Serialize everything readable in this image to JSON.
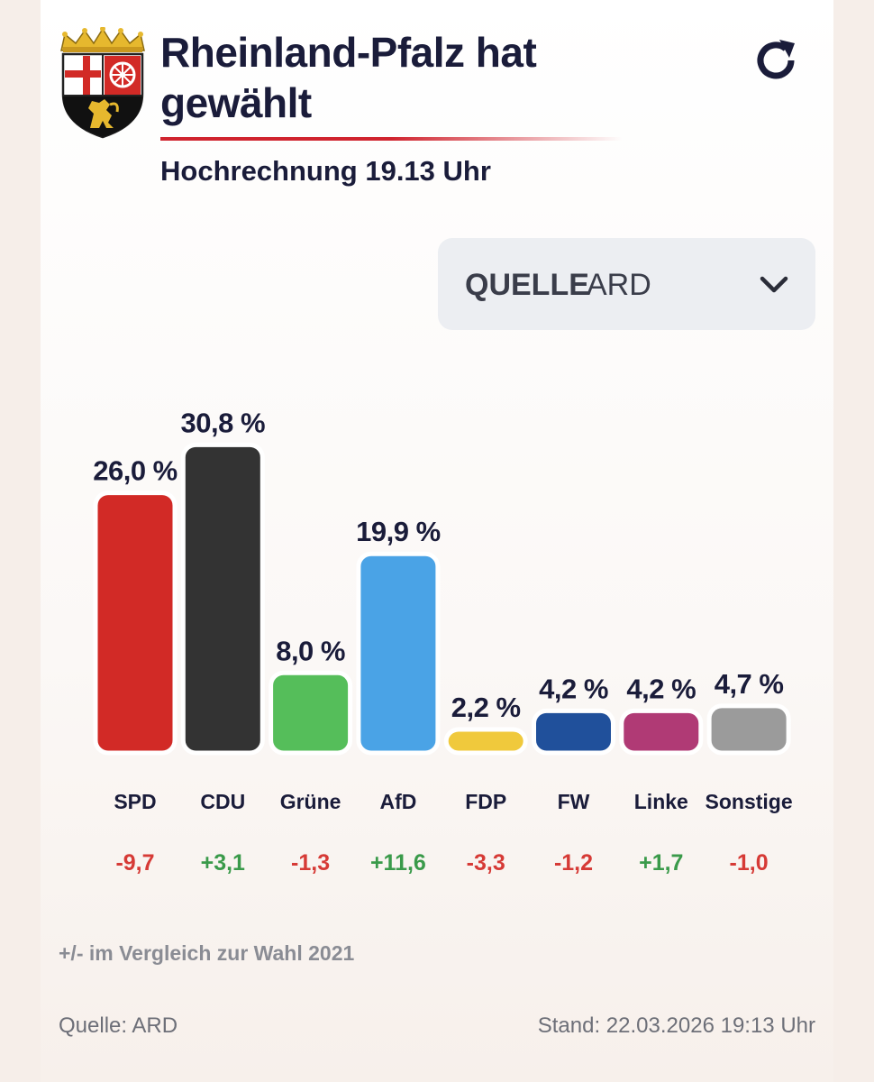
{
  "header": {
    "title": "Rheinland-Pfalz hat gewählt",
    "subtitle": "Hochrechnung 19.13 Uhr",
    "crest_icon": "rheinland-pfalz-coat-of-arms",
    "refresh_icon": "refresh-icon"
  },
  "source_select": {
    "label": "QUELLE",
    "value": "ARD",
    "icon": "chevron-down-icon"
  },
  "chart_data": {
    "type": "bar",
    "categories": [
      "SPD",
      "CDU",
      "Grüne",
      "AfD",
      "FDP",
      "FW",
      "Linke",
      "Sonstige"
    ],
    "values": [
      26.0,
      30.8,
      8.0,
      19.9,
      2.2,
      4.2,
      4.2,
      4.7
    ],
    "value_labels": [
      "26,0 %",
      "30,8 %",
      "8,0 %",
      "19,9 %",
      "2,2 %",
      "4,2 %",
      "4,2 %",
      "4,7 %"
    ],
    "diffs": [
      -9.7,
      3.1,
      -1.3,
      11.6,
      -3.3,
      -1.2,
      1.7,
      -1.0
    ],
    "diff_labels": [
      "-9,7",
      "+3,1",
      "-1,3",
      "+11,6",
      "-3,3",
      "-1,2",
      "+1,7",
      "-1,0"
    ],
    "colors": [
      "#d22a26",
      "#333333",
      "#55be5a",
      "#4aa3e6",
      "#f0c93c",
      "#20509b",
      "#b03a75",
      "#9b9b9b"
    ],
    "positive_color": "#3a9a4a",
    "negative_color": "#d63a36",
    "ylim": [
      0,
      32
    ],
    "grid": false,
    "legend": "none"
  },
  "footer": {
    "note": "+/- im Vergleich zur Wahl 2021",
    "source": "Quelle: ARD",
    "stand": "Stand: 22.03.2026 19:13 Uhr"
  }
}
